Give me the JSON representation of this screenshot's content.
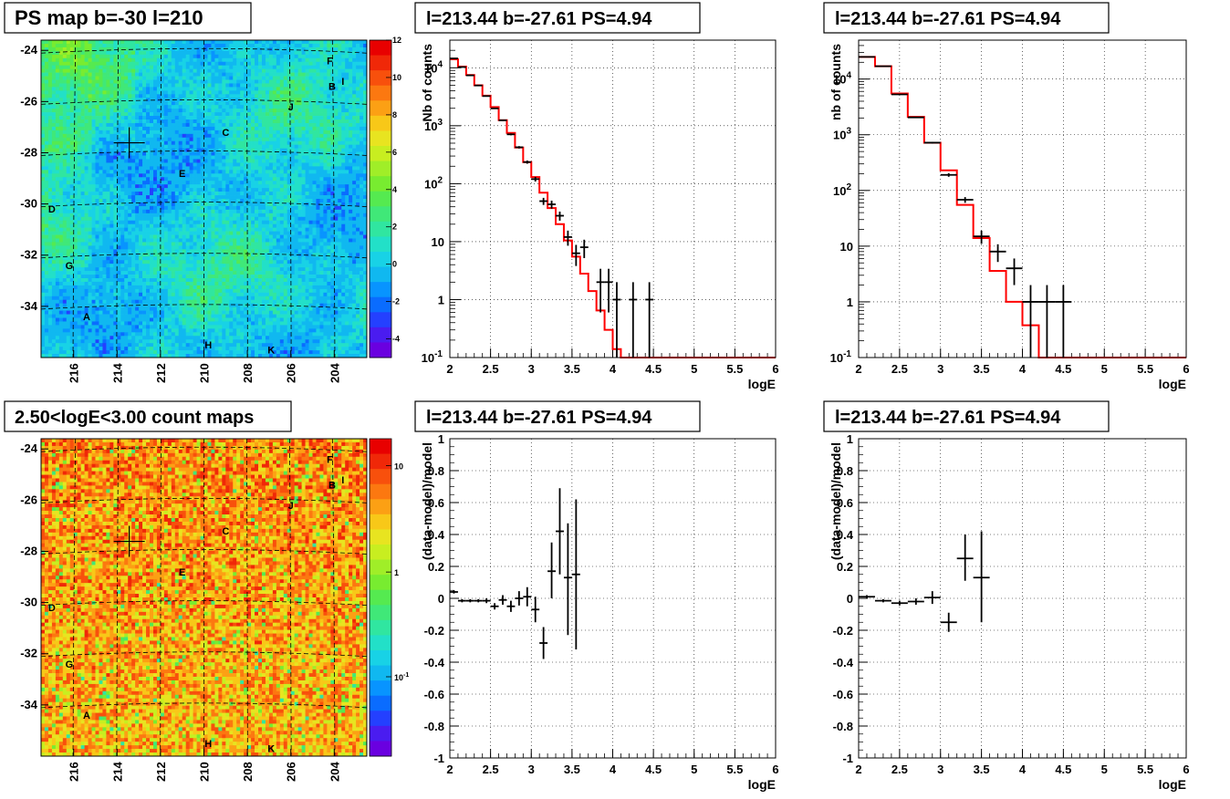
{
  "panels": {
    "map1": {
      "title": "PS map b=-30 l=210"
    },
    "map2": {
      "title": "2.50<logE<3.00 count maps"
    },
    "spec1": {
      "title": "l=213.44 b=-27.61 PS=4.94"
    },
    "spec2": {
      "title": "l=213.44 b=-27.61 PS=4.94"
    },
    "res1": {
      "title": "l=213.44 b=-27.61 PS=4.94"
    },
    "res2": {
      "title": "l=213.44 b=-27.61 PS=4.94"
    }
  },
  "colors": {
    "model_line": "#ff0000",
    "data": "#000000",
    "grid": "#000000"
  },
  "chart_data": [
    {
      "type": "heatmap",
      "id": "map1",
      "title": "PS map b=-30 l=210",
      "xlim": [
        217.5,
        202.5
      ],
      "ylim": [
        -36,
        -23.6
      ],
      "x_ticks": [
        "216",
        "214",
        "212",
        "210",
        "208",
        "206",
        "204"
      ],
      "y_ticks": [
        "-24",
        "-26",
        "-28",
        "-30",
        "-32",
        "-34"
      ],
      "colorbar_ticks": [
        "12",
        "10",
        "8",
        "6",
        "4",
        "2",
        "0",
        "-2",
        "-4"
      ],
      "colorbar_range": [
        -5,
        12
      ],
      "marker": {
        "l": 213.44,
        "b": -27.61
      },
      "sources": [
        {
          "name": "F",
          "l": 204.2,
          "b": -24.4
        },
        {
          "name": "I",
          "l": 203.6,
          "b": -25.2
        },
        {
          "name": "B",
          "l": 204.1,
          "b": -25.4
        },
        {
          "name": "J",
          "l": 206.0,
          "b": -26.2
        },
        {
          "name": "C",
          "l": 209.0,
          "b": -27.2
        },
        {
          "name": "E",
          "l": 211.0,
          "b": -28.8
        },
        {
          "name": "D",
          "l": 217.0,
          "b": -30.2
        },
        {
          "name": "G",
          "l": 216.2,
          "b": -32.4
        },
        {
          "name": "A",
          "l": 215.4,
          "b": -34.4
        },
        {
          "name": "H",
          "l": 209.8,
          "b": -35.5
        },
        {
          "name": "K",
          "l": 206.9,
          "b": -35.7
        }
      ]
    },
    {
      "type": "heatmap",
      "id": "map2",
      "title": "2.50<logE<3.00 count maps",
      "xlim": [
        217.5,
        202.5
      ],
      "ylim": [
        -36,
        -23.6
      ],
      "x_ticks": [
        "216",
        "214",
        "212",
        "210",
        "208",
        "206",
        "204"
      ],
      "y_ticks": [
        "-24",
        "-26",
        "-28",
        "-30",
        "-32",
        "-34"
      ],
      "colorbar_ticks": [
        "10",
        "1",
        "10-1"
      ],
      "colorbar_scale": "log",
      "marker": {
        "l": 213.44,
        "b": -27.61
      },
      "sources": [
        {
          "name": "F",
          "l": 204.2,
          "b": -24.4
        },
        {
          "name": "I",
          "l": 203.6,
          "b": -25.2
        },
        {
          "name": "B",
          "l": 204.1,
          "b": -25.4
        },
        {
          "name": "J",
          "l": 206.0,
          "b": -26.2
        },
        {
          "name": "C",
          "l": 209.0,
          "b": -27.2
        },
        {
          "name": "E",
          "l": 211.0,
          "b": -28.8
        },
        {
          "name": "D",
          "l": 217.0,
          "b": -30.2
        },
        {
          "name": "G",
          "l": 216.2,
          "b": -32.4
        },
        {
          "name": "A",
          "l": 215.4,
          "b": -34.4
        },
        {
          "name": "H",
          "l": 209.8,
          "b": -35.5
        },
        {
          "name": "K",
          "l": 206.9,
          "b": -35.7
        }
      ]
    },
    {
      "type": "line",
      "id": "spec1",
      "title": "l=213.44 b=-27.61 PS=4.94",
      "xlabel": "logE",
      "ylabel": "Nb of counts",
      "xlim": [
        2,
        6
      ],
      "ylim": [
        0.1,
        30000
      ],
      "yscale": "log",
      "grid": true,
      "x_ticks": [
        "2",
        "2.5",
        "3",
        "3.5",
        "4",
        "4.5",
        "5",
        "5.5",
        "6"
      ],
      "y_ticks": [
        {
          "v": 0.1,
          "t": "10-1"
        },
        {
          "v": 1,
          "t": "1"
        },
        {
          "v": 10,
          "t": "10"
        },
        {
          "v": 100,
          "t": "102"
        },
        {
          "v": 1000,
          "t": "103"
        },
        {
          "v": 10000,
          "t": "104"
        }
      ],
      "model_edges": [
        2,
        2.1,
        2.2,
        2.3,
        2.4,
        2.5,
        2.6,
        2.7,
        2.8,
        2.9,
        3,
        3.1,
        3.2,
        3.3,
        3.4,
        3.5,
        3.6,
        3.7,
        3.8,
        3.9,
        4,
        4.1,
        4.2,
        4.3,
        4.4,
        4.5,
        4.6,
        6
      ],
      "model_values": [
        14000,
        10500,
        7500,
        5000,
        3300,
        2100,
        1250,
        750,
        420,
        235,
        130,
        70,
        38,
        20,
        10.5,
        5.5,
        2.8,
        1.4,
        0.65,
        0.3,
        0.14,
        0.1,
        0.1,
        0.1,
        0.1,
        0.1,
        0.1
      ],
      "data": [
        {
          "x": 2.05,
          "y": 14500,
          "xerr": 0.05,
          "ylo": 14300,
          "yhi": 14700
        },
        {
          "x": 2.15,
          "y": 10300,
          "xerr": 0.05,
          "ylo": 10150,
          "yhi": 10450
        },
        {
          "x": 2.25,
          "y": 7400,
          "xerr": 0.05,
          "ylo": 7300,
          "yhi": 7500
        },
        {
          "x": 2.35,
          "y": 4950,
          "xerr": 0.05,
          "ylo": 4880,
          "yhi": 5020
        },
        {
          "x": 2.45,
          "y": 3250,
          "xerr": 0.05,
          "ylo": 3190,
          "yhi": 3310
        },
        {
          "x": 2.55,
          "y": 1990,
          "xerr": 0.05,
          "ylo": 1945,
          "yhi": 2035
        },
        {
          "x": 2.65,
          "y": 1240,
          "xerr": 0.05,
          "ylo": 1205,
          "yhi": 1275
        },
        {
          "x": 2.75,
          "y": 710,
          "xerr": 0.05,
          "ylo": 684,
          "yhi": 736
        },
        {
          "x": 2.85,
          "y": 425,
          "xerr": 0.05,
          "ylo": 405,
          "yhi": 445
        },
        {
          "x": 2.95,
          "y": 236,
          "xerr": 0.05,
          "ylo": 221,
          "yhi": 251
        },
        {
          "x": 3.05,
          "y": 120,
          "xerr": 0.05,
          "ylo": 109,
          "yhi": 131
        },
        {
          "x": 3.15,
          "y": 50,
          "xerr": 0.05,
          "ylo": 43,
          "yhi": 57
        },
        {
          "x": 3.25,
          "y": 44,
          "xerr": 0.05,
          "ylo": 37,
          "yhi": 51
        },
        {
          "x": 3.35,
          "y": 28,
          "xerr": 0.05,
          "ylo": 23,
          "yhi": 33
        },
        {
          "x": 3.45,
          "y": 12,
          "xerr": 0.05,
          "ylo": 8.5,
          "yhi": 15.5
        },
        {
          "x": 3.55,
          "y": 6.3,
          "xerr": 0.05,
          "ylo": 3.8,
          "yhi": 8.8
        },
        {
          "x": 3.65,
          "y": 8,
          "xerr": 0.05,
          "ylo": 5.2,
          "yhi": 10.8
        },
        {
          "x": 3.85,
          "y": 2,
          "xerr": 0.05,
          "ylo": 0.6,
          "yhi": 3.4
        },
        {
          "x": 3.95,
          "y": 2,
          "xerr": 0.05,
          "ylo": 0.6,
          "yhi": 3.4
        },
        {
          "x": 4.05,
          "y": 1,
          "xerr": 0.05,
          "ylo": 0.1,
          "yhi": 2.0
        },
        {
          "x": 4.25,
          "y": 1,
          "xerr": 0.05,
          "ylo": 0.1,
          "yhi": 2.0
        },
        {
          "x": 4.45,
          "y": 1,
          "xerr": 0.05,
          "ylo": 0.1,
          "yhi": 2.0
        }
      ]
    },
    {
      "type": "line",
      "id": "spec2",
      "title": "l=213.44 b=-27.61 PS=4.94",
      "xlabel": "logE",
      "ylabel": "nb of counts",
      "xlim": [
        2,
        6
      ],
      "ylim": [
        0.1,
        50000
      ],
      "yscale": "log",
      "grid": true,
      "x_ticks": [
        "2",
        "2.5",
        "3",
        "3.5",
        "4",
        "4.5",
        "5",
        "5.5",
        "6"
      ],
      "y_ticks": [
        {
          "v": 0.1,
          "t": "10-1"
        },
        {
          "v": 1,
          "t": "1"
        },
        {
          "v": 10,
          "t": "10"
        },
        {
          "v": 100,
          "t": "102"
        },
        {
          "v": 1000,
          "t": "103"
        },
        {
          "v": 10000,
          "t": "104"
        }
      ],
      "model_edges": [
        2,
        2.2,
        2.4,
        2.6,
        2.8,
        3,
        3.2,
        3.4,
        3.6,
        3.8,
        4,
        4.2,
        4.4,
        6
      ],
      "model_values": [
        25000,
        17000,
        5500,
        2100,
        720,
        230,
        55,
        14,
        3.6,
        1.0,
        0.38,
        0.1,
        0.1
      ],
      "data": [
        {
          "x": 2.1,
          "y": 25000,
          "xerr": 0.1,
          "ylo": 24800,
          "yhi": 25200
        },
        {
          "x": 2.3,
          "y": 17000,
          "xerr": 0.1,
          "ylo": 16870,
          "yhi": 17130
        },
        {
          "x": 2.5,
          "y": 5300,
          "xerr": 0.1,
          "ylo": 5230,
          "yhi": 5370
        },
        {
          "x": 2.7,
          "y": 2050,
          "xerr": 0.1,
          "ylo": 2005,
          "yhi": 2095
        },
        {
          "x": 2.9,
          "y": 720,
          "xerr": 0.1,
          "ylo": 693,
          "yhi": 747
        },
        {
          "x": 3.1,
          "y": 190,
          "xerr": 0.1,
          "ylo": 176,
          "yhi": 204
        },
        {
          "x": 3.3,
          "y": 68,
          "xerr": 0.1,
          "ylo": 60,
          "yhi": 76
        },
        {
          "x": 3.5,
          "y": 15,
          "xerr": 0.1,
          "ylo": 11,
          "yhi": 19
        },
        {
          "x": 3.7,
          "y": 8,
          "xerr": 0.1,
          "ylo": 5.2,
          "yhi": 10.8
        },
        {
          "x": 3.9,
          "y": 4,
          "xerr": 0.1,
          "ylo": 2,
          "yhi": 6
        },
        {
          "x": 4.1,
          "y": 1,
          "xerr": 0.1,
          "ylo": 0.1,
          "yhi": 2.0
        },
        {
          "x": 4.3,
          "y": 1,
          "xerr": 0.1,
          "ylo": 0.1,
          "yhi": 2.0
        },
        {
          "x": 4.5,
          "y": 1,
          "xerr": 0.1,
          "ylo": 0.1,
          "yhi": 2.0
        }
      ]
    },
    {
      "type": "scatter",
      "id": "res1",
      "title": "l=213.44 b=-27.61 PS=4.94",
      "xlabel": "logE",
      "ylabel": "(data-model)/model",
      "xlim": [
        2,
        6
      ],
      "ylim": [
        -1,
        1
      ],
      "grid": true,
      "x_ticks": [
        "2",
        "2.5",
        "3",
        "3.5",
        "4",
        "4.5",
        "5",
        "5.5",
        "6"
      ],
      "y_ticks": [
        "-1",
        "-0.8",
        "-0.6",
        "-0.4",
        "-0.2",
        "0",
        "0.2",
        "0.4",
        "0.6",
        "0.8",
        "1"
      ],
      "data": [
        {
          "x": 2.05,
          "y": 0.04,
          "xerr": 0.05,
          "ylo": 0.03,
          "yhi": 0.05
        },
        {
          "x": 2.15,
          "y": -0.015,
          "xerr": 0.05,
          "ylo": -0.025,
          "yhi": -0.005
        },
        {
          "x": 2.25,
          "y": -0.015,
          "xerr": 0.05,
          "ylo": -0.025,
          "yhi": -0.005
        },
        {
          "x": 2.35,
          "y": -0.015,
          "xerr": 0.05,
          "ylo": -0.025,
          "yhi": -0.005
        },
        {
          "x": 2.45,
          "y": -0.015,
          "xerr": 0.05,
          "ylo": -0.03,
          "yhi": 0.0
        },
        {
          "x": 2.55,
          "y": -0.05,
          "xerr": 0.05,
          "ylo": -0.07,
          "yhi": -0.03
        },
        {
          "x": 2.65,
          "y": -0.01,
          "xerr": 0.05,
          "ylo": -0.04,
          "yhi": 0.02
        },
        {
          "x": 2.75,
          "y": -0.05,
          "xerr": 0.05,
          "ylo": -0.085,
          "yhi": -0.015
        },
        {
          "x": 2.85,
          "y": 0.0,
          "xerr": 0.05,
          "ylo": -0.045,
          "yhi": 0.045
        },
        {
          "x": 2.95,
          "y": 0.01,
          "xerr": 0.05,
          "ylo": -0.05,
          "yhi": 0.07
        },
        {
          "x": 3.05,
          "y": -0.07,
          "xerr": 0.05,
          "ylo": -0.15,
          "yhi": 0.01
        },
        {
          "x": 3.15,
          "y": -0.28,
          "xerr": 0.05,
          "ylo": -0.38,
          "yhi": -0.18
        },
        {
          "x": 3.25,
          "y": 0.17,
          "xerr": 0.05,
          "ylo": 0.0,
          "yhi": 0.35
        },
        {
          "x": 3.35,
          "y": 0.42,
          "xerr": 0.05,
          "ylo": 0.15,
          "yhi": 0.69
        },
        {
          "x": 3.45,
          "y": 0.13,
          "xerr": 0.05,
          "ylo": -0.23,
          "yhi": 0.47
        },
        {
          "x": 3.55,
          "y": 0.15,
          "xerr": 0.05,
          "ylo": -0.32,
          "yhi": 0.62
        }
      ]
    },
    {
      "type": "scatter",
      "id": "res2",
      "title": "l=213.44 b=-27.61 PS=4.94",
      "xlabel": "logE",
      "ylabel": "(data-model)/model",
      "xlim": [
        2,
        6
      ],
      "ylim": [
        -1,
        1
      ],
      "grid": true,
      "x_ticks": [
        "2",
        "2.5",
        "3",
        "3.5",
        "4",
        "4.5",
        "5",
        "5.5",
        "6"
      ],
      "y_ticks": [
        "-1",
        "-0.8",
        "-0.6",
        "-0.4",
        "-0.2",
        "0",
        "0.2",
        "0.4",
        "0.6",
        "0.8",
        "1"
      ],
      "data": [
        {
          "x": 2.1,
          "y": 0.01,
          "xerr": 0.1,
          "ylo": 0.0,
          "yhi": 0.02
        },
        {
          "x": 2.3,
          "y": -0.015,
          "xerr": 0.1,
          "ylo": -0.025,
          "yhi": -0.005
        },
        {
          "x": 2.5,
          "y": -0.03,
          "xerr": 0.1,
          "ylo": -0.045,
          "yhi": -0.015
        },
        {
          "x": 2.7,
          "y": -0.02,
          "xerr": 0.1,
          "ylo": -0.04,
          "yhi": 0.0
        },
        {
          "x": 2.9,
          "y": 0.005,
          "xerr": 0.1,
          "ylo": -0.035,
          "yhi": 0.045
        },
        {
          "x": 3.1,
          "y": -0.15,
          "xerr": 0.1,
          "ylo": -0.21,
          "yhi": -0.09
        },
        {
          "x": 3.3,
          "y": 0.25,
          "xerr": 0.1,
          "ylo": 0.11,
          "yhi": 0.4
        },
        {
          "x": 3.5,
          "y": 0.13,
          "xerr": 0.1,
          "ylo": -0.15,
          "yhi": 0.42
        }
      ]
    }
  ]
}
